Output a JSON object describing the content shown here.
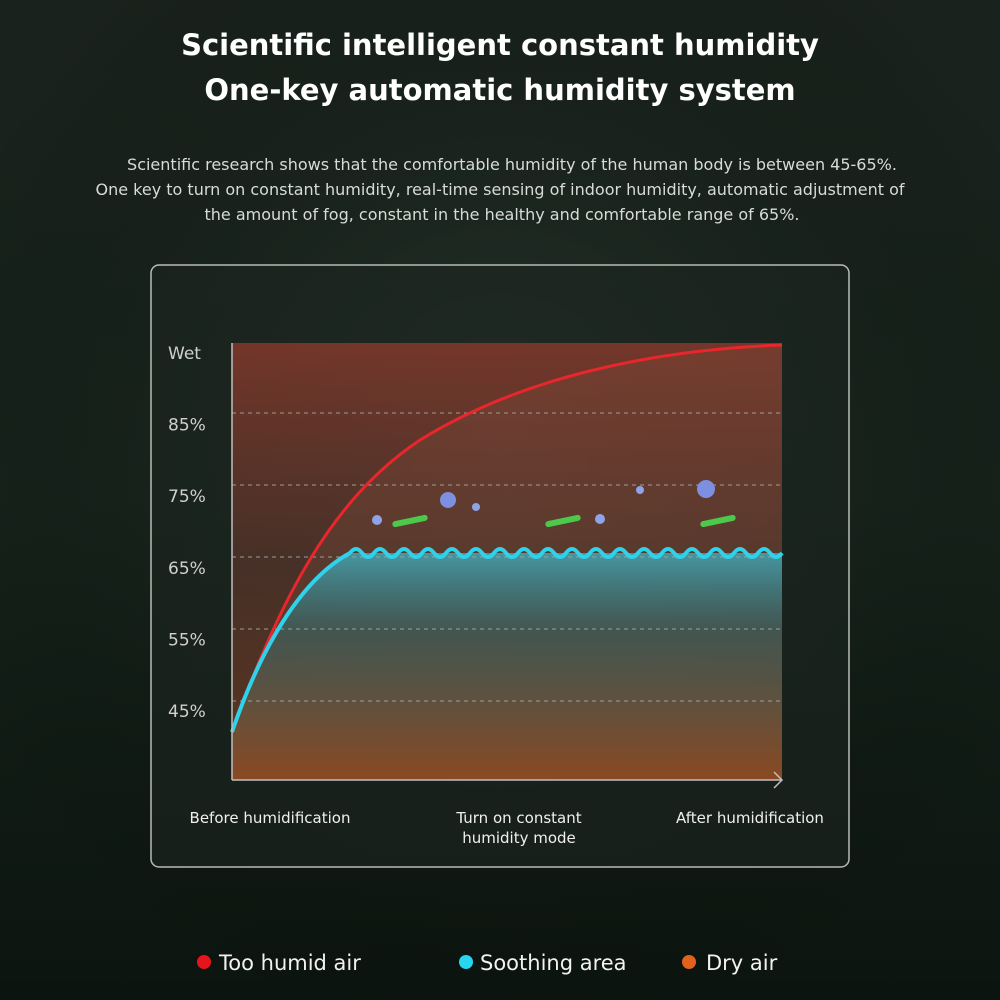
{
  "header": {
    "title_lines": [
      "Scientific intelligent constant humidity",
      "One-key automatic humidity system"
    ],
    "description_lines": [
      "Scientific research shows that the comfortable humidity of the human body is between 45-65%.",
      "One key to turn on constant humidity, real-time sensing of indoor humidity, automatic adjustment of",
      "the amount of fog, constant in the healthy and comfortable range of 65%."
    ]
  },
  "diagram": {
    "y_labels": [
      "Wet",
      "85%",
      "75%",
      "65%",
      "55%",
      "45%"
    ],
    "x_labels": [
      {
        "lines": [
          "Before humidification"
        ]
      },
      {
        "lines": [
          "Turn on constant",
          "humidity mode"
        ]
      },
      {
        "lines": [
          "After humidification"
        ]
      }
    ]
  },
  "legend": [
    {
      "label": "Too humid air"
    },
    {
      "label": "Soothing area"
    },
    {
      "label": "Dry air"
    }
  ]
}
